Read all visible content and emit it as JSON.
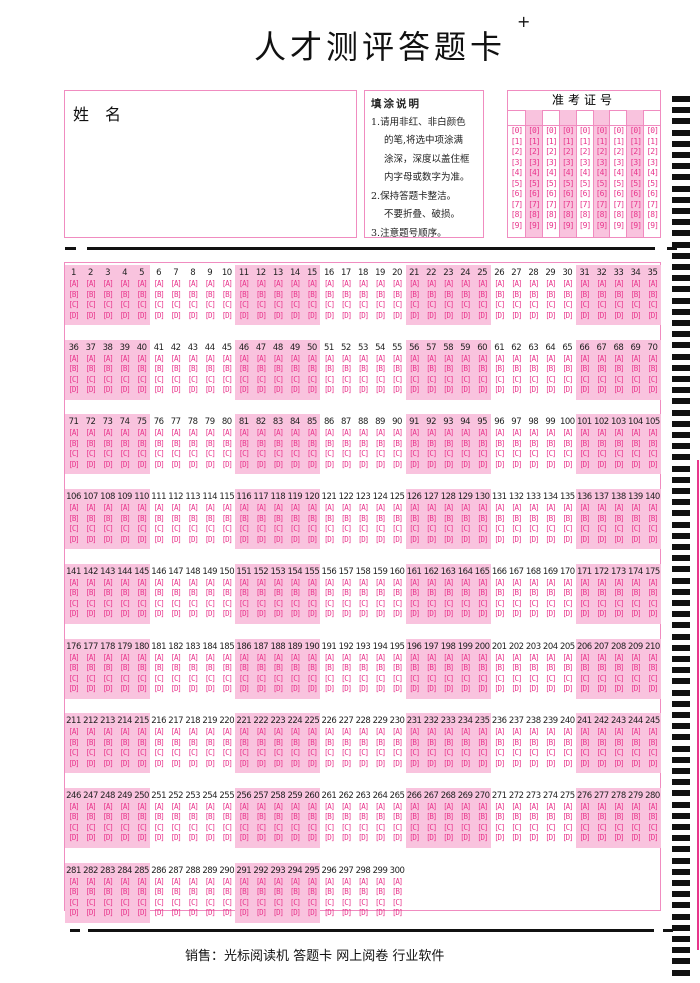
{
  "header": {
    "title": "人才测评答题卡",
    "mark": "+"
  },
  "name_box": {
    "label": "姓　名"
  },
  "instructions": {
    "heading": "填涂说明",
    "lines": [
      "1.请用非红、非白颜色",
      "的笔,将选中项涂满",
      "涂深，深度以盖住框",
      "内字母或数字为准。",
      "2.保持答题卡整洁。",
      "不要折叠、破损。",
      "3.注意题号顺序。"
    ]
  },
  "admission_number": {
    "title": "准考证号",
    "columns": 9,
    "digits": [
      "0",
      "1",
      "2",
      "3",
      "4",
      "5",
      "6",
      "7",
      "8",
      "9"
    ]
  },
  "answer_sheet": {
    "question_count": 300,
    "per_row": 35,
    "group_size": 5,
    "options": [
      "A",
      "B",
      "C",
      "D"
    ]
  },
  "footer": {
    "text": "销售：光标阅读机 答题卡 网上阅卷 行业软件"
  },
  "colors": {
    "pink_fill": "#f9c3de",
    "pink_border": "#f08cc0",
    "option_text": "#e8368c"
  }
}
